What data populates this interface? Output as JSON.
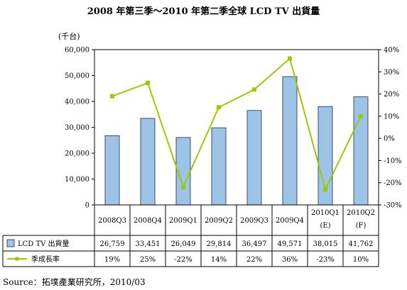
{
  "title": "2008 年第三季～2010 年第二季全球 LCD TV 出貨量",
  "source": "Source：拓墣產業研究所，2010/03",
  "colors": {
    "bar_fill": "#9dc3e6",
    "bar_stroke": "#1f2a44",
    "line": "#99cc00",
    "axis": "#000000"
  },
  "chart_data": {
    "type": "bar",
    "title": "2008 年第三季～2010 年第二季全球 LCD TV 出貨量",
    "ylabel": "(千台)",
    "ylim": [
      0,
      60000
    ],
    "yticks": [
      "0",
      "10,000",
      "20,000",
      "30,000",
      "40,000",
      "50,000",
      "60,000"
    ],
    "y2lim": [
      -30,
      40
    ],
    "y2ticks": [
      "-30%",
      "-20%",
      "-10%",
      "0%",
      "10%",
      "20%",
      "30%",
      "40%"
    ],
    "grid": false,
    "categories": [
      [
        "2008Q3"
      ],
      [
        "2008Q4"
      ],
      [
        "2009Q1"
      ],
      [
        "2009Q2"
      ],
      [
        "2009Q3"
      ],
      [
        "2009Q4"
      ],
      [
        "2010Q1",
        "(E)"
      ],
      [
        "2010Q2",
        "(F)"
      ]
    ],
    "series": [
      {
        "name": "LCD TV 出貨量",
        "type": "bar",
        "axis": "left",
        "values": [
          26759,
          33451,
          26049,
          29814,
          36497,
          49571,
          38015,
          41762
        ],
        "labels": [
          "26,759",
          "33,451",
          "26,049",
          "29,814",
          "36,497",
          "49,571",
          "38,015",
          "41,762"
        ]
      },
      {
        "name": "季成長率",
        "type": "line",
        "axis": "right",
        "values": [
          19,
          25,
          -22,
          14,
          22,
          36,
          -23,
          10
        ],
        "labels": [
          "19%",
          "25%",
          "-22%",
          "14%",
          "22%",
          "36%",
          "-23%",
          "10%"
        ]
      }
    ],
    "legend_placement": "data-table"
  }
}
